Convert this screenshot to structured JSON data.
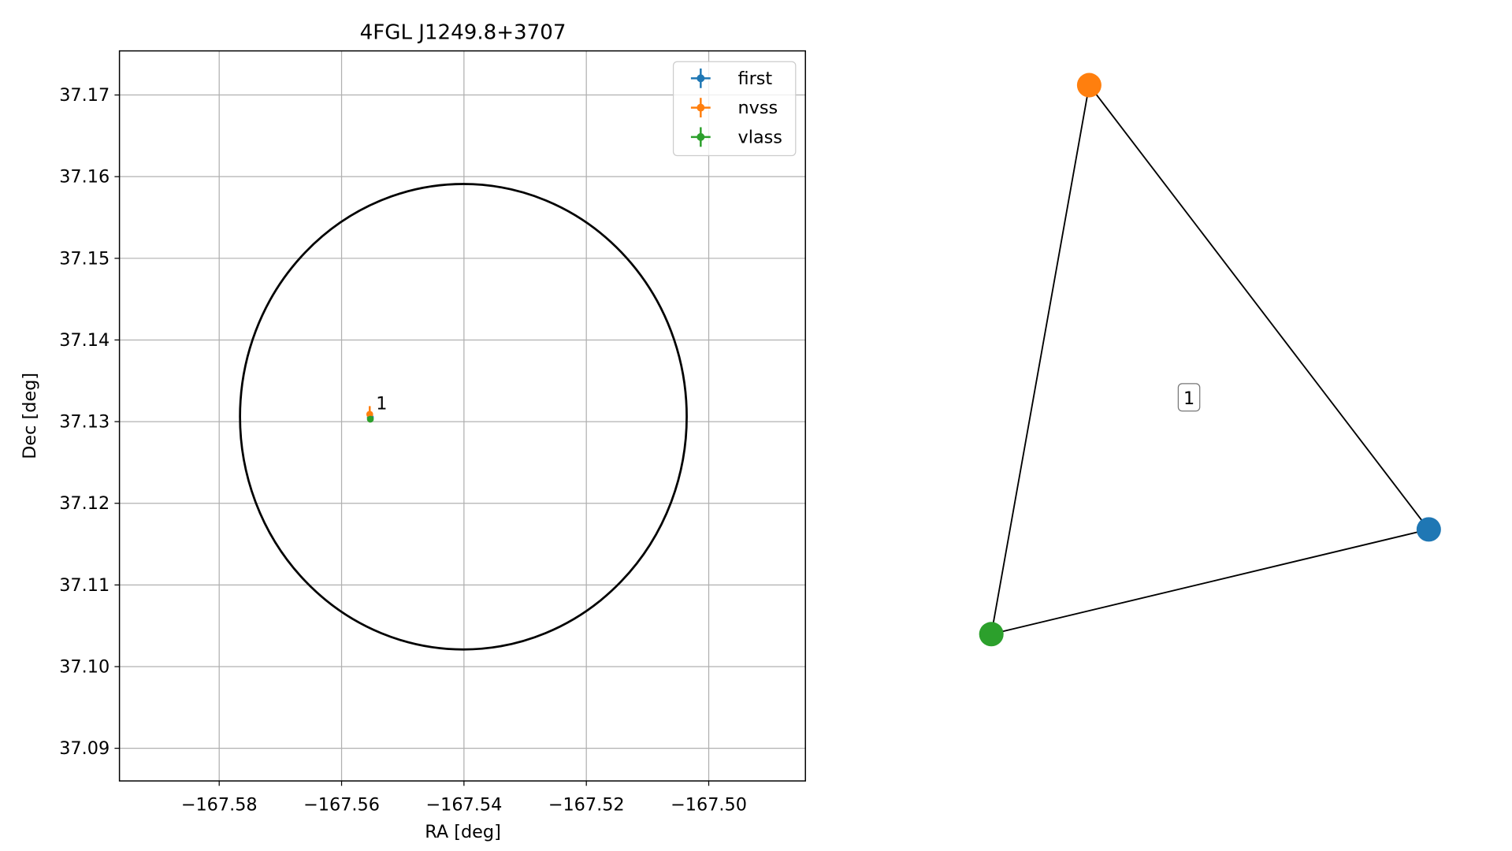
{
  "chart_data": [
    {
      "type": "scatter",
      "title": "4FGL J1249.8+3707",
      "xlabel": "RA [deg]",
      "ylabel": "Dec [deg]",
      "xlim": [
        -167.5963,
        -167.4842
      ],
      "ylim": [
        37.086,
        37.1754
      ],
      "xticks": [
        {
          "value": -167.58,
          "label": "−167.58"
        },
        {
          "value": -167.56,
          "label": "−167.56"
        },
        {
          "value": -167.54,
          "label": "−167.54"
        },
        {
          "value": -167.52,
          "label": "−167.52"
        },
        {
          "value": -167.5,
          "label": "−167.50"
        }
      ],
      "yticks": [
        37.09,
        {
          "value": 37.1,
          "label": "37.10"
        },
        37.11,
        37.12,
        37.13,
        37.14,
        37.15,
        37.16,
        37.17
      ],
      "grid": true,
      "legend": "upper right",
      "series": [
        {
          "name": "first",
          "color": "#1f77b4",
          "x": [
            -167.5553
          ],
          "y": [
            37.1305
          ],
          "xerr": [
            0.0002
          ],
          "yerr": [
            0.0003
          ]
        },
        {
          "name": "nvss",
          "color": "#ff7f0e",
          "x": [
            -167.5554
          ],
          "y": [
            37.1309
          ],
          "xerr": [
            0.0004
          ],
          "yerr": [
            0.001
          ]
        },
        {
          "name": "vlass",
          "color": "#2ca02c",
          "x": [
            -167.5553
          ],
          "y": [
            37.1303
          ],
          "xerr": [
            0.0001
          ],
          "yerr": [
            0.0001
          ]
        }
      ],
      "region": {
        "ra": -167.5401,
        "dec": 37.1306,
        "ra_radius": 0.0365,
        "dec_radius": 0.0285,
        "color": "#000000"
      },
      "annotations": [
        "1"
      ]
    },
    {
      "type": "graph",
      "nodes": [
        {
          "color": "#1f77b4"
        },
        {
          "color": "#ff7f0e"
        },
        {
          "color": "#2ca02c"
        }
      ],
      "edges": [
        [
          0,
          1
        ],
        [
          1,
          2
        ],
        [
          2,
          0
        ]
      ],
      "group_label": "1"
    }
  ]
}
